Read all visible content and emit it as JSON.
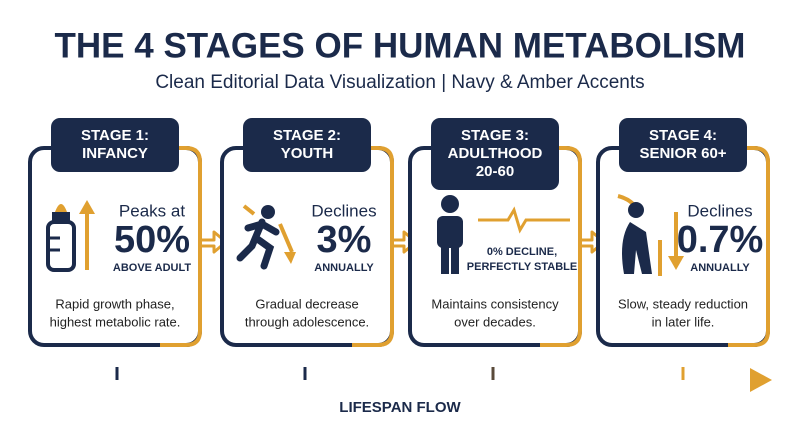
{
  "header": {
    "title": "THE 4 STAGES OF HUMAN METABOLISM",
    "subtitle": "Clean Editorial Data Visualization | Navy & Amber Accents"
  },
  "stages": [
    {
      "tab": [
        "STAGE 1:",
        "INFANCY"
      ],
      "lead": "Peaks at",
      "value": "50%",
      "unit": "ABOVE ADULT",
      "description": [
        "Rapid growth phase,",
        "highest metabolic rate."
      ]
    },
    {
      "tab": [
        "STAGE 2:",
        "YOUTH"
      ],
      "lead": "Declines",
      "value": "3%",
      "unit": "ANNUALLY",
      "description": [
        "Gradual decrease",
        "through adolescence."
      ]
    },
    {
      "tab": [
        "STAGE 3:",
        "ADULTHOOD",
        "20-60"
      ],
      "note": [
        "0% DECLINE,",
        "PERFECTLY STABLE"
      ],
      "description": [
        "Maintains consistency",
        "over decades."
      ]
    },
    {
      "tab": [
        "STAGE 4:",
        "SENIOR 60+"
      ],
      "lead": "Declines",
      "value": "0.7%",
      "unit": "ANNUALLY",
      "description": [
        "Slow, steady reduction",
        "in later life."
      ]
    }
  ],
  "footer": {
    "label": "LIFESPAN FLOW"
  }
}
